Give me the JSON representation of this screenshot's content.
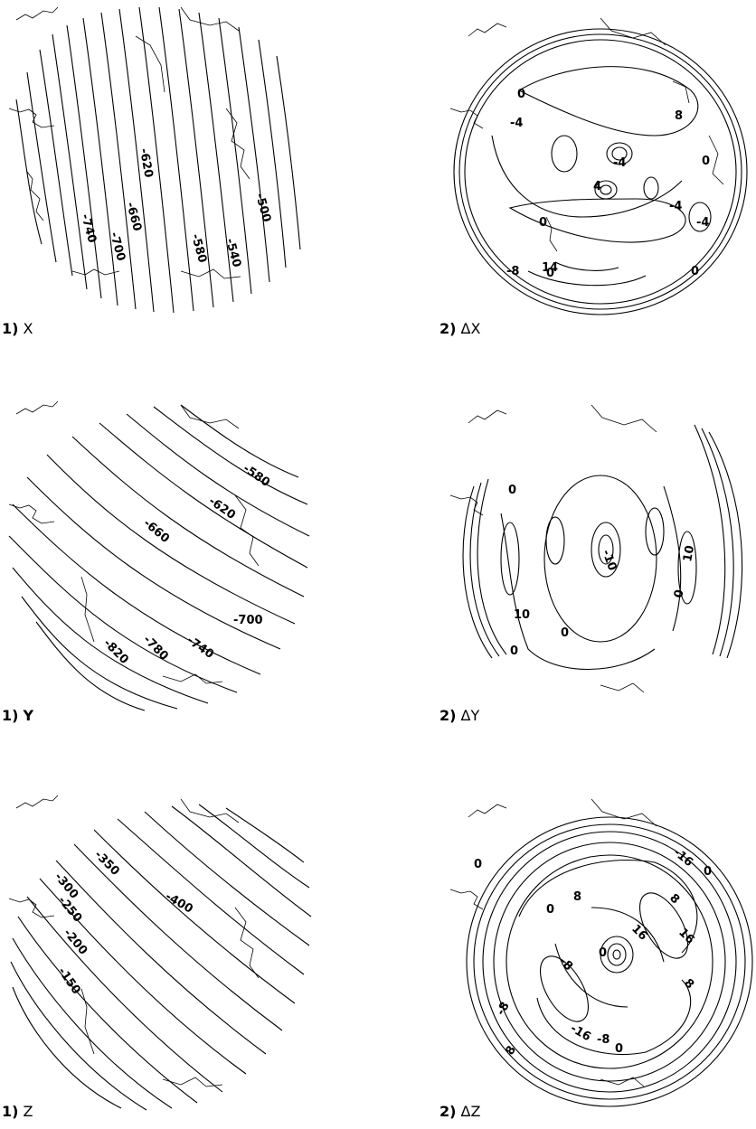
{
  "panels": [
    {
      "id": "x",
      "number": "1)",
      "name": "X",
      "kind": "band",
      "labels": [
        "-620",
        "-660",
        "-700",
        "-740",
        "-580",
        "-540",
        "-500"
      ]
    },
    {
      "id": "dx",
      "number": "2)",
      "name": "ΔX",
      "kind": "diff",
      "labels": [
        "0",
        "-4",
        "8",
        "0",
        "-4",
        "4",
        "-4",
        "-4",
        "0",
        "14",
        "0",
        "-8",
        "0"
      ]
    },
    {
      "id": "y",
      "number": "1)",
      "name": "Y",
      "kind": "band",
      "labels": [
        "-580",
        "-620",
        "-660",
        "-700",
        "-740",
        "-780",
        "-820"
      ]
    },
    {
      "id": "dy",
      "number": "2)",
      "name": "ΔY",
      "kind": "diff",
      "labels": [
        "0",
        "-10",
        "10",
        "0",
        "10",
        "0",
        "0"
      ]
    },
    {
      "id": "z",
      "number": "1)",
      "name": "Z",
      "kind": "band",
      "labels": [
        "-350",
        "-300",
        "-250",
        "-200",
        "-150",
        "-400"
      ]
    },
    {
      "id": "dz",
      "number": "2)",
      "name": "ΔZ",
      "kind": "diff",
      "labels": [
        "0",
        "-16",
        "0",
        "8",
        "0",
        "8",
        "16",
        "16",
        "0",
        "-8",
        "8",
        "-16",
        "-8",
        "0",
        "-8",
        "8"
      ]
    }
  ]
}
